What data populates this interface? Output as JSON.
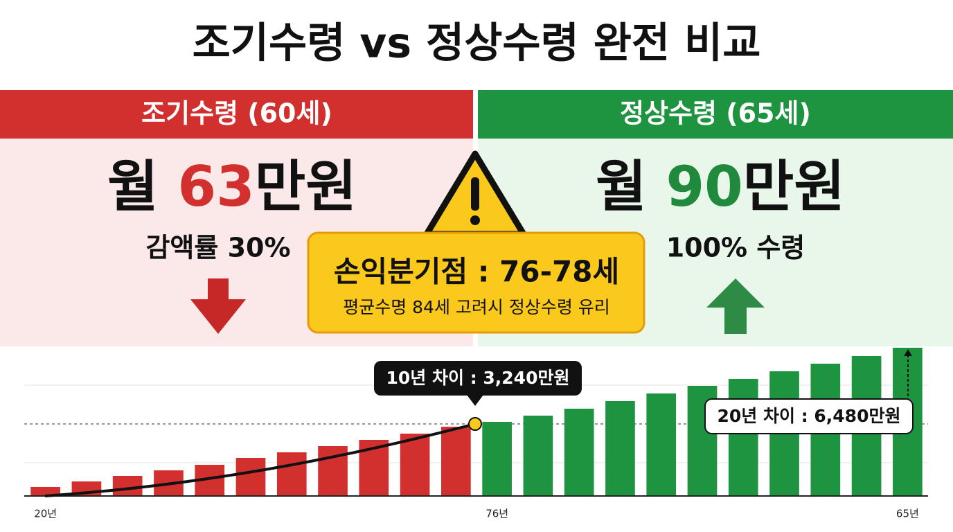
{
  "title": "조기수령 vs 정상수령 완전 비교",
  "early": {
    "header": "조기수령 (60세)",
    "prefix": "월",
    "amount": "63",
    "unit": "만원",
    "note": "감액률 30%"
  },
  "normal": {
    "header": "정상수령 (65세)",
    "prefix": "월",
    "amount": "90",
    "unit": "만원",
    "note": "100% 수령"
  },
  "breakeven": {
    "title": "손익분기점 : 76-78세",
    "subtitle": "평균수명 84세 고려시 정상수령 유리"
  },
  "callouts": [
    "10년 차이 : 3,240만원",
    "20년 차이 : 6,480만원"
  ],
  "chart_data": {
    "type": "bar",
    "categories": [
      "20년",
      null,
      null,
      null,
      null,
      null,
      null,
      null,
      null,
      null,
      null,
      "76년",
      null,
      null,
      null,
      null,
      null,
      null,
      null,
      null,
      null,
      "65년"
    ],
    "series": [
      {
        "color": "#d22f2f",
        "values": [
          13,
          21,
          29,
          37,
          45,
          55,
          63,
          72,
          81,
          90,
          100,
          null,
          null,
          null,
          null,
          null,
          null,
          null,
          null,
          null,
          null,
          null
        ]
      },
      {
        "color": "#1f9440",
        "values": [
          null,
          null,
          null,
          null,
          null,
          null,
          null,
          null,
          null,
          null,
          null,
          107,
          116,
          126,
          137,
          148,
          159,
          169,
          180,
          191,
          202,
          214
        ]
      }
    ],
    "ylim": [
      0,
      216
    ]
  }
}
